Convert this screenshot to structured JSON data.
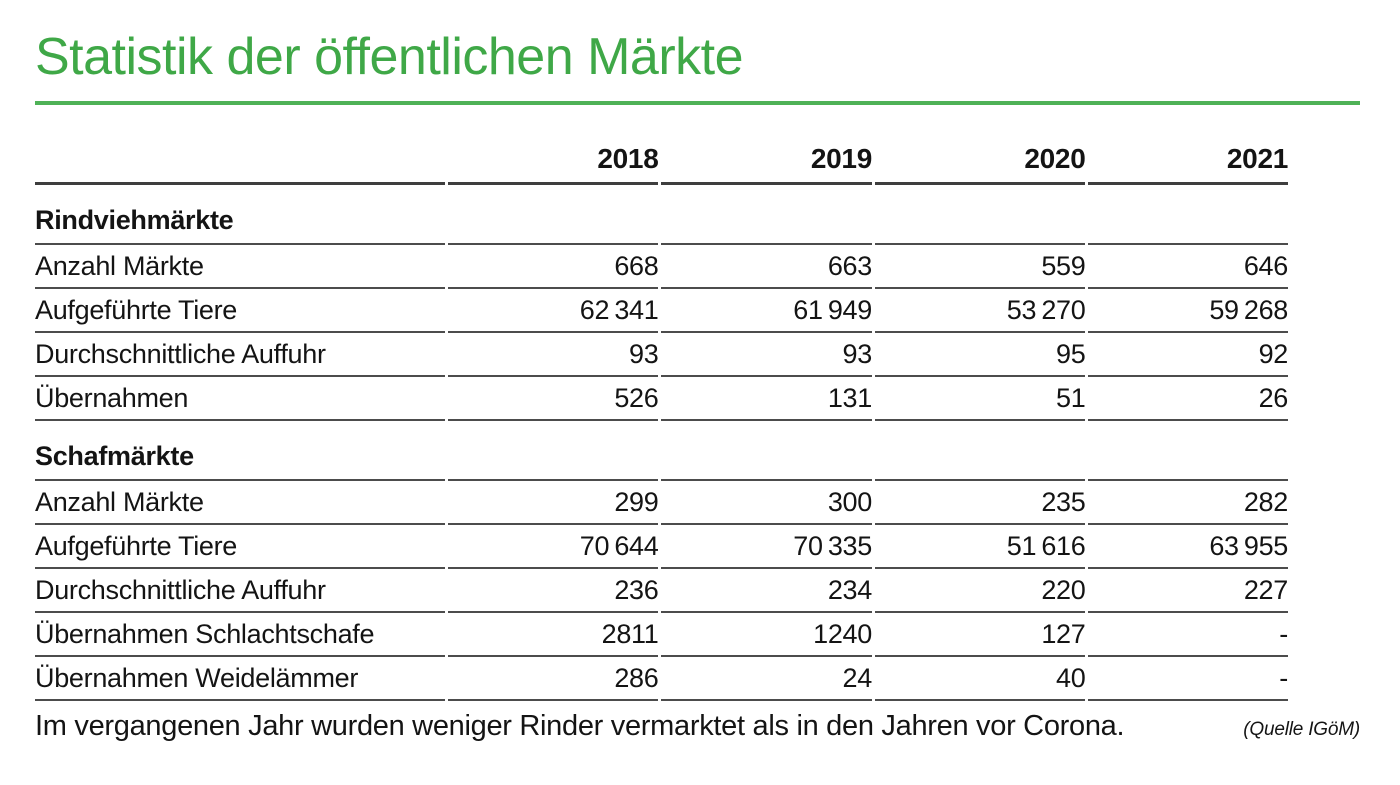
{
  "chart_data": {
    "type": "table",
    "title": "Statistik der öffentlichen Märkte",
    "columns": [
      "",
      "2018",
      "2019",
      "2020",
      "2021"
    ],
    "sections": [
      {
        "label": "Rindviehmärkte",
        "rows": [
          {
            "label": "Anzahl Märkte",
            "values": [
              "668",
              "663",
              "559",
              "646"
            ]
          },
          {
            "label": "Aufgeführte Tiere",
            "values": [
              "62 341",
              "61 949",
              "53 270",
              "59 268"
            ]
          },
          {
            "label": "Durchschnittliche Auffuhr",
            "values": [
              "93",
              "93",
              "95",
              "92"
            ]
          },
          {
            "label": "Übernahmen",
            "values": [
              "526",
              "131",
              "51",
              "26"
            ]
          }
        ]
      },
      {
        "label": "Schafmärkte",
        "rows": [
          {
            "label": "Anzahl Märkte",
            "values": [
              "299",
              "300",
              "235",
              "282"
            ]
          },
          {
            "label": "Aufgeführte Tiere",
            "values": [
              "70 644",
              "70 335",
              "51 616",
              "63 955"
            ]
          },
          {
            "label": "Durchschnittliche Auffuhr",
            "values": [
              "236",
              "234",
              "220",
              "227"
            ]
          },
          {
            "label": "Übernahmen Schlachtschafe",
            "values": [
              "2811",
              "1240",
              "127",
              "-"
            ]
          },
          {
            "label": "Übernahmen Weidelämmer",
            "values": [
              "286",
              "24",
              "40",
              "-"
            ]
          }
        ]
      }
    ],
    "caption": "Im vergangenen Jahr wurden weniger Rinder vermarktet als in den Jahren vor Corona.",
    "source": "(Quelle IGöM)",
    "layout": {
      "legend": "none",
      "grid": "horizontal-rules",
      "accent_green": "#3fa847",
      "rule_color": "#4c4c4c"
    }
  }
}
